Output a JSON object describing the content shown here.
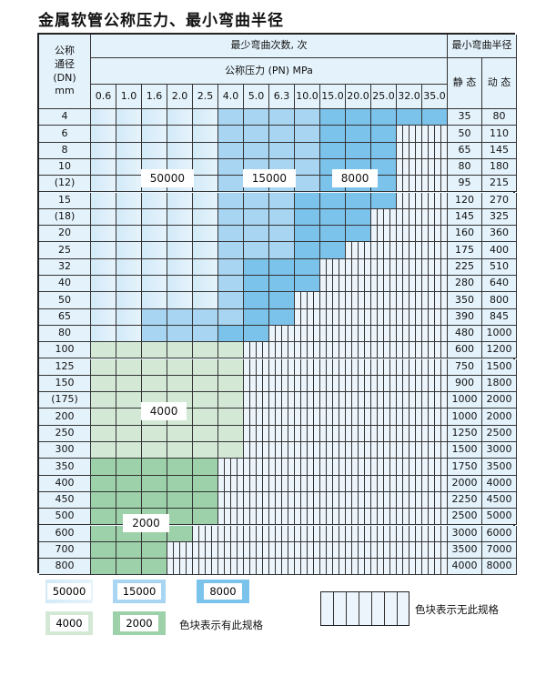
{
  "title": "金属软管公称压力、最小弯曲半径",
  "header": {
    "dn_label": "公称\n通径\n(DN)\nmm",
    "bend_count": "最少弯曲次数, 次",
    "pressure": "公称压力 (PN) MPa",
    "min_radius": "最小弯曲半径",
    "static": "静 态",
    "dynamic": "动 态",
    "pressures": [
      "0.6",
      "1.0",
      "1.6",
      "2.0",
      "2.5",
      "4.0",
      "5.0",
      "6.3",
      "10.0",
      "15.0",
      "20.0",
      "25.0",
      "32.0",
      "35.0"
    ]
  },
  "rows": [
    {
      "dn": "4",
      "cells": "LLLLLMMMMDDDDD",
      "static": "35",
      "dynamic": "80"
    },
    {
      "dn": "6",
      "cells": "LLLLLMMMMDDDXX",
      "static": "50",
      "dynamic": "110"
    },
    {
      "dn": "8",
      "cells": "LLLLLMMMMDDDXX",
      "static": "65",
      "dynamic": "145"
    },
    {
      "dn": "10",
      "cells": "LLLLLMMMMDDDXX",
      "static": "80",
      "dynamic": "180"
    },
    {
      "dn": "(12)",
      "cells": "LLLLLMMMMDDDXX",
      "static": "95",
      "dynamic": "215"
    },
    {
      "dn": "15",
      "cells": "LLLLLMMMDDDDXX",
      "static": "120",
      "dynamic": "270"
    },
    {
      "dn": "(18)",
      "cells": "LLLLLMMMDDDXXX",
      "static": "145",
      "dynamic": "325"
    },
    {
      "dn": "20",
      "cells": "LLLLLMMMDDDXXX",
      "static": "160",
      "dynamic": "360"
    },
    {
      "dn": "25",
      "cells": "LLLLLMMMDDXXXX",
      "static": "175",
      "dynamic": "400"
    },
    {
      "dn": "32",
      "cells": "LLLLLMDDDXXXXX",
      "static": "225",
      "dynamic": "510"
    },
    {
      "dn": "40",
      "cells": "LLLLLMDDDXXXXX",
      "static": "280",
      "dynamic": "640"
    },
    {
      "dn": "50",
      "cells": "LLLLLMDDXXXXXX",
      "static": "350",
      "dynamic": "800"
    },
    {
      "dn": "65",
      "cells": "LLMMMMDDXXXXXX",
      "static": "390",
      "dynamic": "845"
    },
    {
      "dn": "80",
      "cells": "LLMMMDDXXXXXXX",
      "static": "480",
      "dynamic": "1000"
    },
    {
      "dn": "100",
      "cells": "GGGGGGXXXXXXXX",
      "static": "600",
      "dynamic": "1200"
    },
    {
      "dn": "125",
      "cells": "GGGGGGXXXXXXXX",
      "static": "750",
      "dynamic": "1500"
    },
    {
      "dn": "150",
      "cells": "GGGGGGXXXXXXXX",
      "static": "900",
      "dynamic": "1800"
    },
    {
      "dn": "(175)",
      "cells": "GGGGGGXXXXXXXX",
      "static": "1000",
      "dynamic": "2000"
    },
    {
      "dn": "200",
      "cells": "GGGGGGXXXXXXXX",
      "static": "1000",
      "dynamic": "2000"
    },
    {
      "dn": "250",
      "cells": "GGGGGGXXXXXXXX",
      "static": "1250",
      "dynamic": "2500"
    },
    {
      "dn": "300",
      "cells": "GGGGGGXXXXXXXX",
      "static": "1500",
      "dynamic": "3000"
    },
    {
      "dn": "350",
      "cells": "HHHHHXXXXXXXXX",
      "static": "1750",
      "dynamic": "3500"
    },
    {
      "dn": "400",
      "cells": "HHHHHXXXXXXXXX",
      "static": "2000",
      "dynamic": "4000"
    },
    {
      "dn": "450",
      "cells": "HHHHHXXXXXXXXX",
      "static": "2250",
      "dynamic": "4500"
    },
    {
      "dn": "500",
      "cells": "HHHHHXXXXXXXXX",
      "static": "2500",
      "dynamic": "5000"
    },
    {
      "dn": "600",
      "cells": "HHHHXXXXXXXXXX",
      "static": "3000",
      "dynamic": "6000"
    },
    {
      "dn": "700",
      "cells": "HHHXXXXXXXXXXX",
      "static": "3500",
      "dynamic": "7000"
    },
    {
      "dn": "800",
      "cells": "HHHXXXXXXXXXXX",
      "static": "4000",
      "dynamic": "8000"
    }
  ],
  "region_labels": {
    "L": "50000",
    "M": "15000",
    "D": "8000",
    "G": "4000",
    "H": "2000"
  },
  "legend": {
    "has_spec": "色块表示有此规格",
    "no_spec": "色块表示无此规格"
  },
  "colors": {
    "L": "#d2eaf8",
    "M": "#a8d6f2",
    "D": "#7cc3ec",
    "G": "#d3e9d6",
    "H": "#9dd1a9"
  }
}
